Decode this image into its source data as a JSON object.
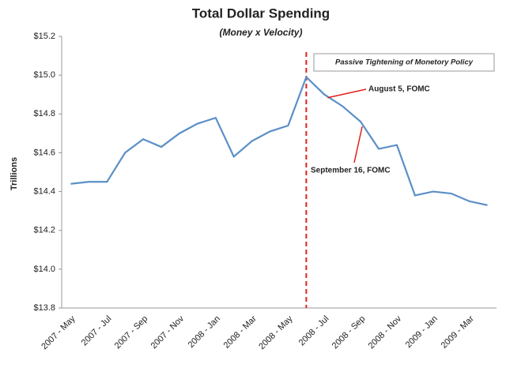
{
  "chart_data": {
    "type": "line",
    "title": "Total Dollar Spending",
    "subtitle": "(Money x Velocity)",
    "y_label": "Trillions",
    "categories": [
      "2007 - May",
      null,
      "2007 - Jul",
      null,
      "2007 - Sep",
      null,
      "2007 - Nov",
      null,
      "2008 - Jan",
      null,
      "2008 - Mar",
      null,
      "2008 - May",
      null,
      "2008 - Jul",
      null,
      "2008 - Sep",
      null,
      "2008 - Nov",
      null,
      "2009 - Jan",
      null,
      "2009 - Mar",
      null
    ],
    "series": [
      {
        "name": "Total Dollar Spending",
        "color": "#5b8fc7",
        "values": [
          14.44,
          14.45,
          14.45,
          14.6,
          14.67,
          14.63,
          14.7,
          14.75,
          14.78,
          14.58,
          14.66,
          14.71,
          14.74,
          14.99,
          14.9,
          14.84,
          14.76,
          14.62,
          14.64,
          14.38,
          14.4,
          14.39,
          14.35,
          14.33
        ]
      }
    ],
    "ylim": [
      13.8,
      15.2
    ],
    "yticks": [
      {
        "value": 13.8,
        "label": "$13.8"
      },
      {
        "value": 14.0,
        "label": "$14.0"
      },
      {
        "value": 14.2,
        "label": "$14.2"
      },
      {
        "value": 14.4,
        "label": "$14.4"
      },
      {
        "value": 14.6,
        "label": "$14.6"
      },
      {
        "value": 14.8,
        "label": "$14.8"
      },
      {
        "value": 15.0,
        "label": "$15.0"
      },
      {
        "value": 15.2,
        "label": "$15.2"
      }
    ],
    "grid": false,
    "annotations": [
      "Passive Tightening of Monetory Policy",
      "August 5, FOMC",
      "September 16, FOMC"
    ]
  }
}
